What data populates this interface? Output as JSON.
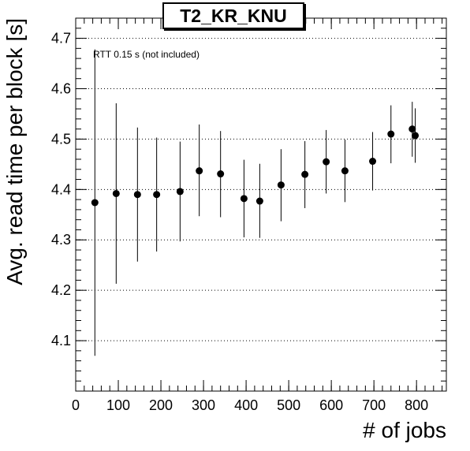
{
  "chart_data": {
    "type": "scatter",
    "title": "T2_KR_KNU",
    "xlabel": "# of jobs",
    "ylabel": "Avg. read time per block [s]",
    "annotation": "RTT 0.15 s (not included)",
    "xlim": [
      0,
      870
    ],
    "ylim": [
      4.0,
      4.74
    ],
    "x_ticks": [
      0,
      100,
      200,
      300,
      400,
      500,
      600,
      700,
      800
    ],
    "x_tick_labels": [
      "0",
      "100",
      "200",
      "300",
      "400",
      "500",
      "600",
      "700",
      "800"
    ],
    "y_ticks": [
      4.1,
      4.2,
      4.3,
      4.4,
      4.5,
      4.6,
      4.7
    ],
    "y_tick_labels": [
      "4.1",
      "4.2",
      "4.3",
      "4.4",
      "4.5",
      "4.6",
      "4.7"
    ],
    "grid": "horizontal dotted",
    "marker_color": "#000000",
    "points": [
      {
        "x": 45,
        "y": 4.374,
        "low": 4.07,
        "high": 4.678
      },
      {
        "x": 95,
        "y": 4.392,
        "low": 4.213,
        "high": 4.571
      },
      {
        "x": 145,
        "y": 4.39,
        "low": 4.257,
        "high": 4.523
      },
      {
        "x": 190,
        "y": 4.39,
        "low": 4.277,
        "high": 4.503
      },
      {
        "x": 245,
        "y": 4.396,
        "low": 4.297,
        "high": 4.495
      },
      {
        "x": 290,
        "y": 4.437,
        "low": 4.347,
        "high": 4.529
      },
      {
        "x": 340,
        "y": 4.431,
        "low": 4.345,
        "high": 4.516
      },
      {
        "x": 395,
        "y": 4.382,
        "low": 4.305,
        "high": 4.459
      },
      {
        "x": 432,
        "y": 4.377,
        "low": 4.304,
        "high": 4.451
      },
      {
        "x": 482,
        "y": 4.409,
        "low": 4.337,
        "high": 4.48
      },
      {
        "x": 538,
        "y": 4.43,
        "low": 4.363,
        "high": 4.496
      },
      {
        "x": 588,
        "y": 4.455,
        "low": 4.392,
        "high": 4.518
      },
      {
        "x": 632,
        "y": 4.437,
        "low": 4.375,
        "high": 4.499
      },
      {
        "x": 697,
        "y": 4.456,
        "low": 4.398,
        "high": 4.514
      },
      {
        "x": 740,
        "y": 4.51,
        "low": 4.452,
        "high": 4.567
      },
      {
        "x": 790,
        "y": 4.52,
        "low": 4.465,
        "high": 4.574
      },
      {
        "x": 797,
        "y": 4.507,
        "low": 4.453,
        "high": 4.561
      }
    ]
  }
}
